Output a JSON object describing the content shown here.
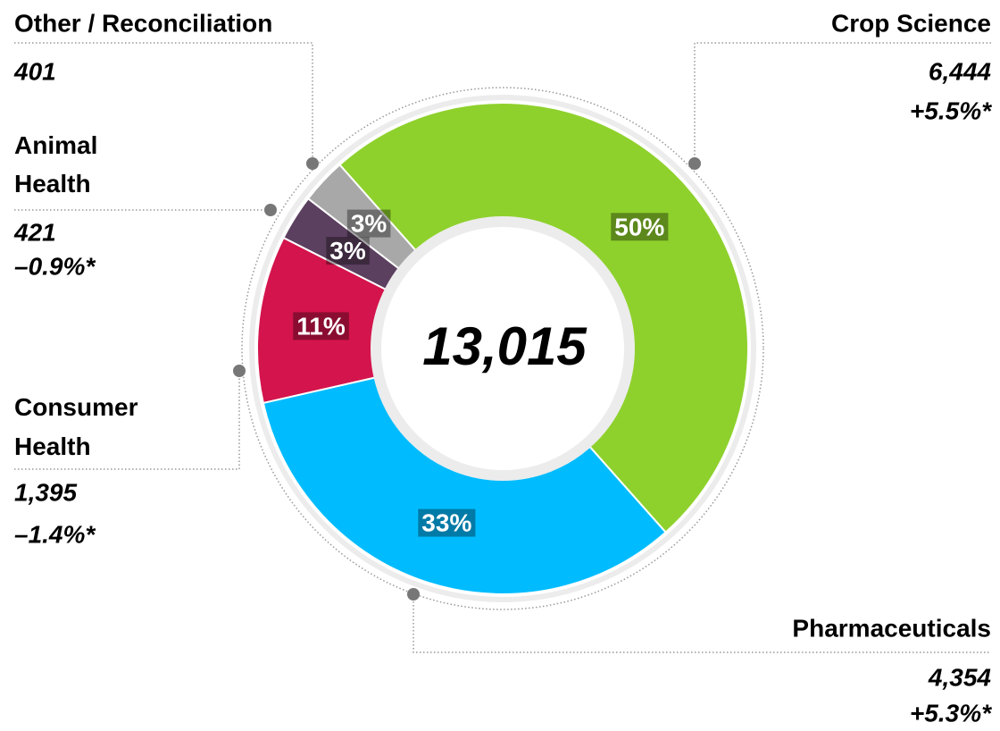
{
  "chart_data": {
    "type": "donut",
    "total": "13,015",
    "series": [
      {
        "name": "Crop Science",
        "color": "#8ed12c",
        "value": 50,
        "value_label": "50%",
        "amount": "6,444",
        "change": "+5.5%*"
      },
      {
        "name": "Pharmaceuticals",
        "color": "#00bcff",
        "value": 33,
        "value_label": "33%",
        "amount": "4,354",
        "change": "+5.3%*"
      },
      {
        "name": "Consumer Health",
        "color": "#d4144c",
        "value": 11,
        "value_label": "11%",
        "amount": "1,395",
        "change": "–1.4%*"
      },
      {
        "name": "Animal Health",
        "color": "#5c4060",
        "value": 3,
        "value_label": "3%",
        "amount": "421",
        "change": "–0.9%*"
      },
      {
        "name": "Other / Reconciliation",
        "color": "#a8a8a8",
        "value": 3,
        "value_label": "3%",
        "amount": "401"
      }
    ]
  }
}
